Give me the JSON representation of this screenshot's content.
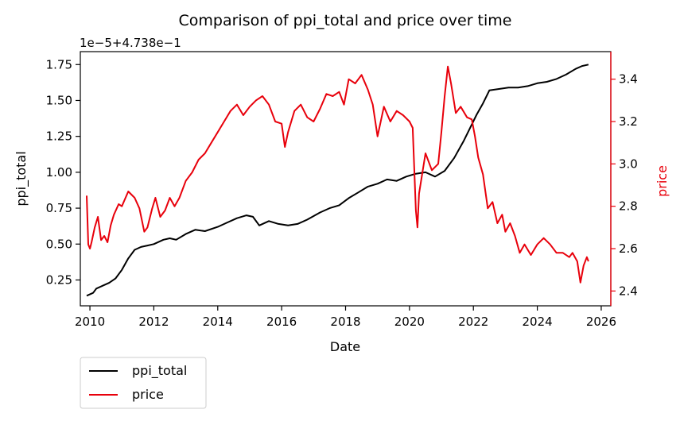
{
  "chart_data": {
    "type": "line",
    "title": "Comparison of ppi_total and price over time",
    "xlabel": "Date",
    "ylabel_left": "ppi_total",
    "ylabel_right": "price",
    "left_axis_offset_text": "1e−5+4.738e−1",
    "xlim": [
      2009.7,
      2026.3
    ],
    "ylim_left": [
      0.07,
      1.84
    ],
    "ylim_right": [
      2.33,
      3.53
    ],
    "x_ticks": [
      2010,
      2012,
      2014,
      2016,
      2018,
      2020,
      2022,
      2024,
      2026
    ],
    "x_tick_labels": [
      "2010",
      "2012",
      "2014",
      "2016",
      "2018",
      "2020",
      "2022",
      "2024",
      "2026"
    ],
    "y_left_ticks": [
      0.25,
      0.5,
      0.75,
      1.0,
      1.25,
      1.5,
      1.75
    ],
    "y_left_tick_labels": [
      "0.25",
      "0.50",
      "0.75",
      "1.00",
      "1.25",
      "1.50",
      "1.75"
    ],
    "y_right_ticks": [
      2.4,
      2.6,
      2.8,
      3.0,
      3.2,
      3.4
    ],
    "y_right_tick_labels": [
      "2.4",
      "2.6",
      "2.8",
      "3.0",
      "3.2",
      "3.4"
    ],
    "grid": false,
    "legend_position": "below-left",
    "series": [
      {
        "name": "ppi_total",
        "axis": "left",
        "color": "#000000",
        "x": [
          2009.9,
          2010.1,
          2010.2,
          2010.4,
          2010.6,
          2010.8,
          2011.0,
          2011.2,
          2011.4,
          2011.6,
          2011.8,
          2012.0,
          2012.3,
          2012.5,
          2012.7,
          2013.0,
          2013.3,
          2013.6,
          2014.0,
          2014.3,
          2014.6,
          2014.9,
          2015.1,
          2015.3,
          2015.6,
          2015.9,
          2016.2,
          2016.5,
          2016.8,
          2017.2,
          2017.5,
          2017.8,
          2018.1,
          2018.4,
          2018.7,
          2019.0,
          2019.3,
          2019.6,
          2019.9,
          2020.2,
          2020.5,
          2020.8,
          2021.1,
          2021.4,
          2021.7,
          2021.9,
          2022.1,
          2022.3,
          2022.5,
          2022.8,
          2023.1,
          2023.4,
          2023.7,
          2024.0,
          2024.3,
          2024.6,
          2024.9,
          2025.2,
          2025.4,
          2025.6
        ],
        "y": [
          0.14,
          0.16,
          0.19,
          0.21,
          0.23,
          0.26,
          0.32,
          0.4,
          0.46,
          0.48,
          0.49,
          0.5,
          0.53,
          0.54,
          0.53,
          0.57,
          0.6,
          0.59,
          0.62,
          0.65,
          0.68,
          0.7,
          0.69,
          0.63,
          0.66,
          0.64,
          0.63,
          0.64,
          0.67,
          0.72,
          0.75,
          0.77,
          0.82,
          0.86,
          0.9,
          0.92,
          0.95,
          0.94,
          0.97,
          0.99,
          1.0,
          0.97,
          1.01,
          1.1,
          1.22,
          1.31,
          1.4,
          1.48,
          1.57,
          1.58,
          1.59,
          1.59,
          1.6,
          1.62,
          1.63,
          1.65,
          1.68,
          1.72,
          1.74,
          1.75
        ]
      },
      {
        "name": "price",
        "axis": "right",
        "color": "#e8000b",
        "x": [
          2009.9,
          2009.95,
          2010.0,
          2010.05,
          2010.15,
          2010.25,
          2010.35,
          2010.45,
          2010.55,
          2010.65,
          2010.75,
          2010.9,
          2011.0,
          2011.2,
          2011.4,
          2011.55,
          2011.7,
          2011.8,
          2011.95,
          2012.05,
          2012.2,
          2012.35,
          2012.5,
          2012.65,
          2012.8,
          2013.0,
          2013.2,
          2013.4,
          2013.6,
          2013.8,
          2014.0,
          2014.2,
          2014.4,
          2014.6,
          2014.8,
          2015.0,
          2015.2,
          2015.4,
          2015.6,
          2015.8,
          2016.0,
          2016.1,
          2016.2,
          2016.4,
          2016.6,
          2016.8,
          2017.0,
          2017.2,
          2017.4,
          2017.6,
          2017.8,
          2017.95,
          2018.1,
          2018.3,
          2018.5,
          2018.7,
          2018.85,
          2019.0,
          2019.2,
          2019.4,
          2019.6,
          2019.8,
          2020.0,
          2020.1,
          2020.2,
          2020.25,
          2020.3,
          2020.5,
          2020.7,
          2020.9,
          2021.0,
          2021.1,
          2021.2,
          2021.3,
          2021.45,
          2021.6,
          2021.8,
          2021.95,
          2022.05,
          2022.15,
          2022.3,
          2022.45,
          2022.6,
          2022.75,
          2022.9,
          2023.0,
          2023.15,
          2023.3,
          2023.45,
          2023.6,
          2023.8,
          2024.0,
          2024.2,
          2024.4,
          2024.6,
          2024.8,
          2025.0,
          2025.1,
          2025.25,
          2025.35,
          2025.45,
          2025.55,
          2025.6
        ],
        "y": [
          2.85,
          2.62,
          2.6,
          2.63,
          2.7,
          2.75,
          2.64,
          2.66,
          2.63,
          2.71,
          2.76,
          2.81,
          2.8,
          2.87,
          2.84,
          2.79,
          2.68,
          2.7,
          2.79,
          2.84,
          2.75,
          2.78,
          2.84,
          2.8,
          2.84,
          2.92,
          2.96,
          3.02,
          3.05,
          3.1,
          3.15,
          3.2,
          3.25,
          3.28,
          3.23,
          3.27,
          3.3,
          3.32,
          3.28,
          3.2,
          3.19,
          3.08,
          3.15,
          3.25,
          3.28,
          3.22,
          3.2,
          3.26,
          3.33,
          3.32,
          3.34,
          3.28,
          3.4,
          3.38,
          3.42,
          3.35,
          3.28,
          3.13,
          3.27,
          3.2,
          3.25,
          3.23,
          3.2,
          3.17,
          2.78,
          2.7,
          2.86,
          3.05,
          2.97,
          3.0,
          3.15,
          3.32,
          3.46,
          3.38,
          3.24,
          3.27,
          3.22,
          3.21,
          3.13,
          3.03,
          2.95,
          2.79,
          2.82,
          2.72,
          2.76,
          2.68,
          2.72,
          2.66,
          2.58,
          2.62,
          2.57,
          2.62,
          2.65,
          2.62,
          2.58,
          2.58,
          2.56,
          2.58,
          2.54,
          2.44,
          2.52,
          2.56,
          2.54
        ]
      }
    ]
  }
}
